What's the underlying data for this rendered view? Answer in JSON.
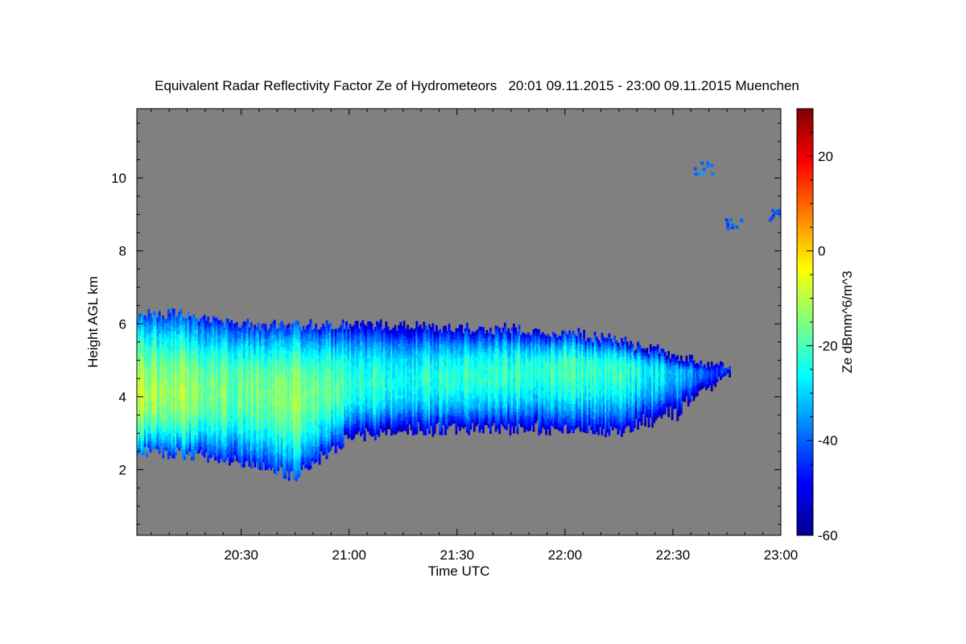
{
  "chart_data": {
    "type": "heatmap",
    "title": "Equivalent Radar Reflectivity Factor Ze of Hydrometeors   20:01 09.11.2015 - 23:00 09.11.2015 Muenchen",
    "xlabel": "Time UTC",
    "ylabel": "Height AGL km",
    "x_range": [
      "20:01",
      "23:00"
    ],
    "x_ticks": [
      "20:30",
      "21:00",
      "21:30",
      "22:00",
      "22:30",
      "23:00"
    ],
    "ylim": [
      0.2,
      11.9
    ],
    "y_ticks": [
      2,
      4,
      6,
      8,
      10
    ],
    "colorbar": {
      "label": "Ze dBmm^6/m^3",
      "range": [
        -60,
        30
      ],
      "ticks": [
        -60,
        -40,
        -20,
        0,
        20
      ],
      "colormap": "jet"
    },
    "no_data_color": "#808080",
    "cloud_layer": {
      "description_source": "visual estimate",
      "time_start": "20:01",
      "time_end": "22:46",
      "profile": [
        {
          "time": "20:01",
          "top_km": 6.2,
          "base_km": 2.7,
          "peak_km": 4.0,
          "peak_dbz": -10
        },
        {
          "time": "20:15",
          "top_km": 6.2,
          "base_km": 2.6,
          "peak_km": 4.0,
          "peak_dbz": -14
        },
        {
          "time": "20:30",
          "top_km": 5.9,
          "base_km": 2.4,
          "peak_km": 4.2,
          "peak_dbz": -18
        },
        {
          "time": "20:45",
          "top_km": 5.9,
          "base_km": 2.0,
          "peak_km": 4.0,
          "peak_dbz": -12
        },
        {
          "time": "21:00",
          "top_km": 5.9,
          "base_km": 3.1,
          "peak_km": 4.3,
          "peak_dbz": -22
        },
        {
          "time": "21:15",
          "top_km": 5.9,
          "base_km": 3.2,
          "peak_km": 4.4,
          "peak_dbz": -24
        },
        {
          "time": "21:30",
          "top_km": 5.8,
          "base_km": 3.3,
          "peak_km": 4.5,
          "peak_dbz": -22
        },
        {
          "time": "21:45",
          "top_km": 5.8,
          "base_km": 3.3,
          "peak_km": 4.6,
          "peak_dbz": -22
        },
        {
          "time": "22:00",
          "top_km": 5.7,
          "base_km": 3.3,
          "peak_km": 4.7,
          "peak_dbz": -20
        },
        {
          "time": "22:15",
          "top_km": 5.5,
          "base_km": 3.2,
          "peak_km": 4.7,
          "peak_dbz": -22
        },
        {
          "time": "22:30",
          "top_km": 5.1,
          "base_km": 3.6,
          "peak_km": 4.6,
          "peak_dbz": -30
        },
        {
          "time": "22:40",
          "top_km": 4.9,
          "base_km": 4.3,
          "peak_km": 4.6,
          "peak_dbz": -42
        },
        {
          "time": "22:46",
          "top_km": 4.8,
          "base_km": 4.7,
          "peak_km": 4.75,
          "peak_dbz": -48
        }
      ]
    },
    "upper_echoes": [
      {
        "time": "22:38",
        "height_km": 10.3,
        "dbz": -38
      },
      {
        "time": "22:47",
        "height_km": 8.8,
        "dbz": -40
      },
      {
        "time": "22:59",
        "height_km": 9.0,
        "dbz": -40
      }
    ]
  }
}
